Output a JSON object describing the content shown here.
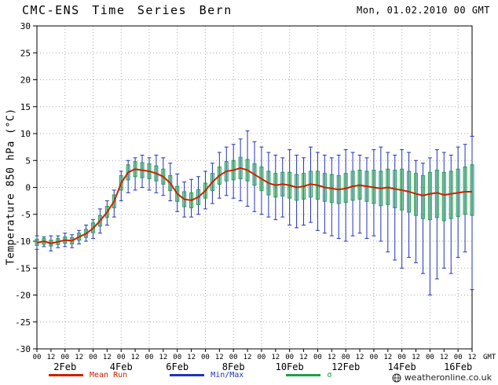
{
  "header": {
    "title": "CMC-ENS Time Series Bern",
    "datetime": "Mon, 01.02.2010 00 GMT"
  },
  "watermark": {
    "text": "weatheronline.co.uk"
  },
  "legend": {
    "items": [
      {
        "label": "Mean Run",
        "color": "#cc2200"
      },
      {
        "label": "Min/Max",
        "color": "#2233bb"
      },
      {
        "label": "σ",
        "color": "#1fa04a"
      }
    ]
  },
  "chart_data": {
    "type": "line",
    "title": "CMC-ENS Time Series Bern",
    "xlabel": "",
    "ylabel": "Temperature 850 hPa (°C)",
    "ylim": [
      -30,
      30
    ],
    "y_ticks": [
      -30,
      -25,
      -20,
      -15,
      -10,
      -5,
      0,
      5,
      10,
      15,
      20,
      25,
      30
    ],
    "grid": "dotted",
    "t_start": 0,
    "t_step": 0.25,
    "hour_labels": [
      "00",
      "12"
    ],
    "gmt_label": "GMT",
    "date_labels": [
      {
        "t": 1,
        "label": "2Feb"
      },
      {
        "t": 3,
        "label": "4Feb"
      },
      {
        "t": 5,
        "label": "6Feb"
      },
      {
        "t": 7,
        "label": "8Feb"
      },
      {
        "t": 9,
        "label": "10Feb"
      },
      {
        "t": 11,
        "label": "12Feb"
      },
      {
        "t": 13,
        "label": "14Feb"
      },
      {
        "t": 15,
        "label": "16Feb"
      }
    ],
    "series": [
      {
        "name": "Mean Run",
        "kind": "line",
        "color": "#cc2200",
        "values": [
          -10.3,
          -10.0,
          -10.4,
          -10.1,
          -9.8,
          -9.9,
          -9.2,
          -8.6,
          -7.6,
          -6.2,
          -4.6,
          -2.6,
          0.8,
          2.8,
          3.4,
          3.2,
          3.0,
          2.6,
          2.0,
          0.8,
          -1.2,
          -2.2,
          -2.4,
          -1.8,
          -0.6,
          1.0,
          2.2,
          3.0,
          3.2,
          3.6,
          3.2,
          2.4,
          1.6,
          0.8,
          0.4,
          0.6,
          0.4,
          0.0,
          0.2,
          0.6,
          0.4,
          0.0,
          -0.2,
          -0.4,
          -0.2,
          0.2,
          0.4,
          0.2,
          0.0,
          -0.2,
          0.0,
          -0.3,
          -0.5,
          -0.8,
          -1.2,
          -1.5,
          -1.2,
          -1.0,
          -1.4,
          -1.2,
          -1.0,
          -0.8,
          -0.8
        ]
      },
      {
        "name": "Min/Max",
        "kind": "whisker",
        "color": "#2233bb",
        "min": [
          -11.5,
          -11.0,
          -11.8,
          -11.2,
          -11.0,
          -11.2,
          -10.5,
          -10.0,
          -9.5,
          -8.5,
          -7.0,
          -5.5,
          -2.5,
          -1.0,
          -0.5,
          0.0,
          -0.5,
          -1.0,
          -1.5,
          -2.5,
          -4.5,
          -5.5,
          -5.5,
          -5.0,
          -4.0,
          -3.0,
          -2.0,
          -1.5,
          -2.0,
          -2.5,
          -3.5,
          -4.5,
          -5.0,
          -5.5,
          -6.0,
          -5.5,
          -7.0,
          -7.5,
          -7.0,
          -6.5,
          -8.0,
          -8.5,
          -9.0,
          -9.5,
          -10.0,
          -9.0,
          -8.5,
          -9.5,
          -9.0,
          -10.0,
          -12.0,
          -13.5,
          -15.0,
          -13.0,
          -14.0,
          -16.0,
          -20.0,
          -17.0,
          -15.0,
          -16.0,
          -13.0,
          -12.0,
          -19.0
        ],
        "max": [
          -9.0,
          -9.2,
          -9.0,
          -9.0,
          -8.5,
          -8.8,
          -8.0,
          -7.0,
          -6.0,
          -4.0,
          -2.5,
          -0.5,
          3.0,
          5.0,
          5.5,
          6.0,
          5.5,
          6.0,
          5.5,
          4.5,
          2.5,
          1.0,
          1.5,
          2.0,
          3.0,
          4.5,
          6.5,
          7.5,
          8.0,
          9.0,
          10.5,
          8.5,
          7.5,
          6.5,
          6.0,
          5.5,
          7.0,
          6.0,
          5.5,
          7.5,
          6.5,
          6.0,
          5.5,
          6.0,
          7.0,
          6.5,
          6.0,
          5.5,
          7.0,
          7.5,
          6.5,
          6.0,
          7.0,
          6.5,
          5.0,
          4.5,
          5.5,
          7.0,
          6.5,
          6.0,
          7.5,
          8.0,
          9.5
        ]
      },
      {
        "name": "σ",
        "kind": "box",
        "color": "#1fa04a",
        "low": [
          -10.8,
          -10.6,
          -10.9,
          -10.6,
          -10.4,
          -10.5,
          -9.8,
          -9.3,
          -8.4,
          -7.2,
          -5.6,
          -3.8,
          -0.5,
          1.4,
          2.0,
          1.8,
          1.6,
          1.2,
          0.6,
          -0.6,
          -2.6,
          -3.6,
          -3.8,
          -3.2,
          -2.0,
          -0.6,
          0.6,
          1.2,
          1.4,
          1.6,
          1.2,
          0.4,
          -0.6,
          -1.4,
          -1.8,
          -1.6,
          -2.0,
          -2.4,
          -2.2,
          -1.8,
          -2.2,
          -2.6,
          -2.8,
          -3.0,
          -2.8,
          -2.4,
          -2.2,
          -2.6,
          -3.0,
          -3.4,
          -3.2,
          -3.8,
          -4.2,
          -4.6,
          -5.2,
          -5.8,
          -6.0,
          -5.6,
          -6.2,
          -5.8,
          -5.4,
          -5.0,
          -5.2
        ],
        "high": [
          -9.6,
          -9.5,
          -9.8,
          -9.5,
          -9.2,
          -9.3,
          -8.5,
          -7.8,
          -6.6,
          -5.2,
          -3.5,
          -1.4,
          2.2,
          4.2,
          4.8,
          4.6,
          4.4,
          4.0,
          3.4,
          2.2,
          0.2,
          -0.8,
          -1.0,
          -0.4,
          0.8,
          2.6,
          3.8,
          4.8,
          5.0,
          5.6,
          5.2,
          4.4,
          3.8,
          3.0,
          2.6,
          2.8,
          2.8,
          2.4,
          2.6,
          3.0,
          3.0,
          2.6,
          2.4,
          2.2,
          2.6,
          3.0,
          3.2,
          3.0,
          3.2,
          3.0,
          3.4,
          3.2,
          3.4,
          3.0,
          2.6,
          2.2,
          2.8,
          3.2,
          2.8,
          3.0,
          3.4,
          3.8,
          4.2
        ]
      }
    ]
  }
}
